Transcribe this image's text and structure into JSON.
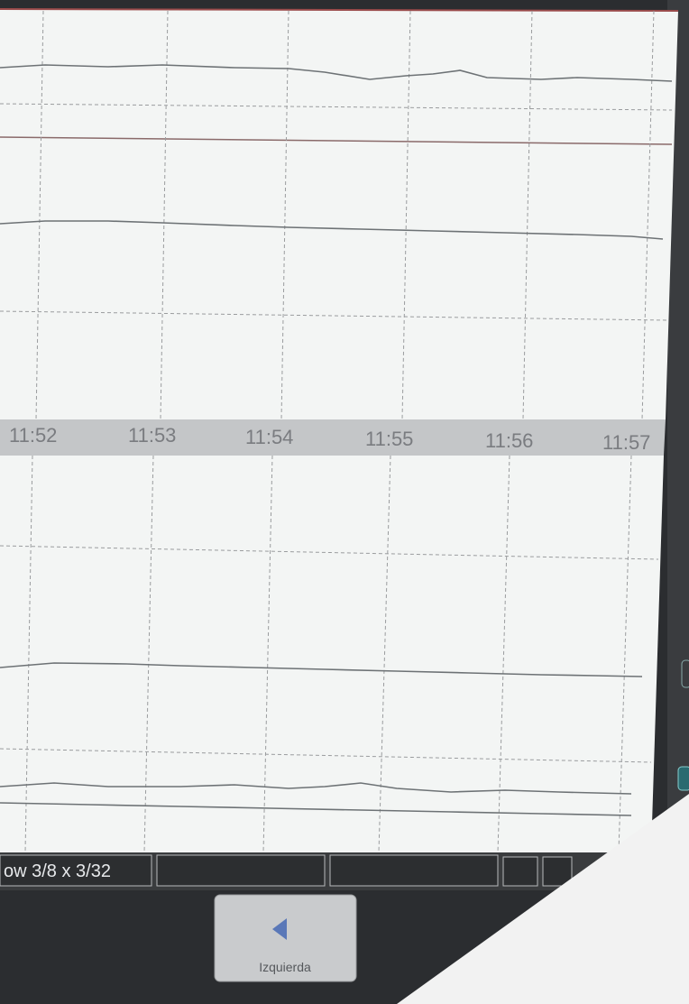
{
  "time_axis": {
    "labels": [
      "11:52",
      "11:53",
      "11:54",
      "11:55",
      "11:56",
      "11:57"
    ]
  },
  "status_bar": {
    "zoom": "ow 3/8 x 3/32"
  },
  "buttons": [
    {
      "label": "Izquierda"
    }
  ]
}
